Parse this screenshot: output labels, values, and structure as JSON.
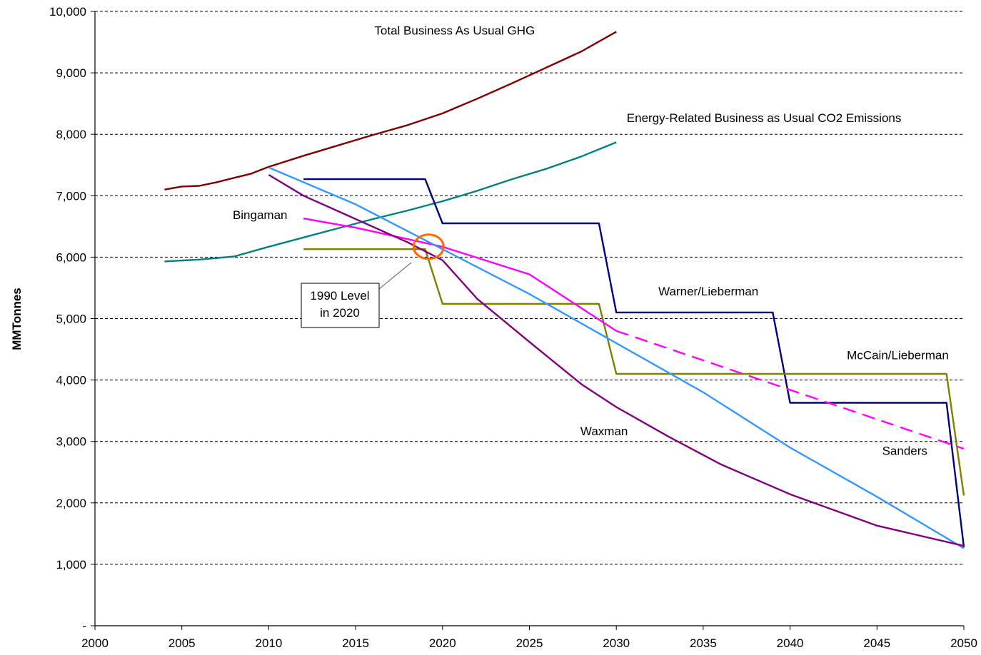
{
  "chart_data": {
    "type": "line",
    "title": "",
    "xlabel": "",
    "ylabel": "MMTonnes",
    "xlim": [
      2000,
      2050
    ],
    "ylim": [
      0,
      10000
    ],
    "x_ticks": [
      2000,
      2005,
      2010,
      2015,
      2020,
      2025,
      2030,
      2035,
      2040,
      2045,
      2050
    ],
    "y_ticks": [
      {
        "value": 0,
        "label": "-"
      },
      {
        "value": 1000,
        "label": "1,000"
      },
      {
        "value": 2000,
        "label": "2,000"
      },
      {
        "value": 3000,
        "label": "3,000"
      },
      {
        "value": 4000,
        "label": "4,000"
      },
      {
        "value": 5000,
        "label": "5,000"
      },
      {
        "value": 6000,
        "label": "6,000"
      },
      {
        "value": 7000,
        "label": "7,000"
      },
      {
        "value": 8000,
        "label": "8,000"
      },
      {
        "value": 9000,
        "label": "9,000"
      },
      {
        "value": 10000,
        "label": "10,000"
      }
    ],
    "grid": "horizontal-dashed",
    "legend": "none (labels placed on chart)",
    "series": [
      {
        "name": "Total Business As Usual GHG",
        "color": "#800000",
        "dashed": false,
        "points": [
          [
            2004,
            7100
          ],
          [
            2005,
            7150
          ],
          [
            2006,
            7160
          ],
          [
            2007,
            7220
          ],
          [
            2008,
            7290
          ],
          [
            2009,
            7360
          ],
          [
            2010,
            7470
          ],
          [
            2012,
            7650
          ],
          [
            2014,
            7820
          ],
          [
            2016,
            7990
          ],
          [
            2018,
            8150
          ],
          [
            2020,
            8340
          ],
          [
            2022,
            8580
          ],
          [
            2024,
            8830
          ],
          [
            2026,
            9090
          ],
          [
            2028,
            9350
          ],
          [
            2030,
            9670
          ]
        ]
      },
      {
        "name": "Energy-Related Business as Usual CO2 Emissions",
        "color": "#008080",
        "dashed": false,
        "points": [
          [
            2004,
            5930
          ],
          [
            2006,
            5960
          ],
          [
            2008,
            6010
          ],
          [
            2010,
            6170
          ],
          [
            2012,
            6320
          ],
          [
            2014,
            6470
          ],
          [
            2016,
            6620
          ],
          [
            2018,
            6760
          ],
          [
            2020,
            6910
          ],
          [
            2022,
            7080
          ],
          [
            2024,
            7270
          ],
          [
            2026,
            7440
          ],
          [
            2028,
            7640
          ],
          [
            2030,
            7870
          ]
        ]
      },
      {
        "name": "Warner/Lieberman",
        "color": "#00007f",
        "dashed": false,
        "points": [
          [
            2012,
            7270
          ],
          [
            2019,
            7270
          ],
          [
            2020,
            6550
          ],
          [
            2029,
            6550
          ],
          [
            2030,
            5100
          ],
          [
            2039,
            5100
          ],
          [
            2040,
            3630
          ],
          [
            2049,
            3630
          ],
          [
            2050,
            1280
          ]
        ]
      },
      {
        "name": "McCain/Lieberman",
        "color": "#808000",
        "dashed": false,
        "points": [
          [
            2012,
            6130
          ],
          [
            2019,
            6130
          ],
          [
            2020,
            5240
          ],
          [
            2029,
            5240
          ],
          [
            2030,
            4100
          ],
          [
            2049,
            4100
          ],
          [
            2050,
            2120
          ]
        ]
      },
      {
        "name": "Bingaman",
        "color": "#ff00ff",
        "dashed": false,
        "points": [
          [
            2012,
            6630
          ],
          [
            2015,
            6480
          ],
          [
            2020,
            6170
          ],
          [
            2025,
            5720
          ],
          [
            2030,
            4800
          ]
        ]
      },
      {
        "name": "Bingaman",
        "color": "#ff00ff",
        "dashed": true,
        "points": [
          [
            2030,
            4800
          ],
          [
            2035,
            4320
          ],
          [
            2040,
            3840
          ],
          [
            2045,
            3360
          ],
          [
            2050,
            2880
          ]
        ]
      },
      {
        "name": "Sanders",
        "color": "#3399ff",
        "dashed": false,
        "points": [
          [
            2010,
            7460
          ],
          [
            2015,
            6860
          ],
          [
            2020,
            6130
          ],
          [
            2025,
            5400
          ],
          [
            2030,
            4600
          ],
          [
            2035,
            3800
          ],
          [
            2040,
            2900
          ],
          [
            2045,
            2100
          ],
          [
            2050,
            1260
          ]
        ]
      },
      {
        "name": "Waxman",
        "color": "#800080",
        "dashed": false,
        "points": [
          [
            2010,
            7340
          ],
          [
            2012,
            7000
          ],
          [
            2015,
            6620
          ],
          [
            2018,
            6240
          ],
          [
            2020,
            5950
          ],
          [
            2022,
            5320
          ],
          [
            2025,
            4620
          ],
          [
            2028,
            3930
          ],
          [
            2030,
            3560
          ],
          [
            2033,
            3080
          ],
          [
            2036,
            2630
          ],
          [
            2040,
            2140
          ],
          [
            2045,
            1630
          ],
          [
            2050,
            1300
          ]
        ]
      }
    ],
    "annotations": [
      {
        "text": "Total Business As Usual GHG",
        "x": 2020.7,
        "y": 9620
      },
      {
        "text": "Energy-Related Business as Usual CO2 Emissions",
        "x": 2038.5,
        "y": 8200
      },
      {
        "text": "Bingaman",
        "x": 2009.5,
        "y": 6620
      },
      {
        "text": "Warner/Lieberman",
        "x": 2035.3,
        "y": 5380
      },
      {
        "text": "McCain/Lieberman",
        "x": 2046.2,
        "y": 4340
      },
      {
        "text": "Waxman",
        "x": 2029.3,
        "y": 3100
      },
      {
        "text": "Sanders",
        "x": 2046.6,
        "y": 2780
      }
    ],
    "callout": {
      "lines": [
        "1990 Level",
        "in 2020"
      ],
      "target_x": 2019.2,
      "target_y": 6170
    }
  }
}
